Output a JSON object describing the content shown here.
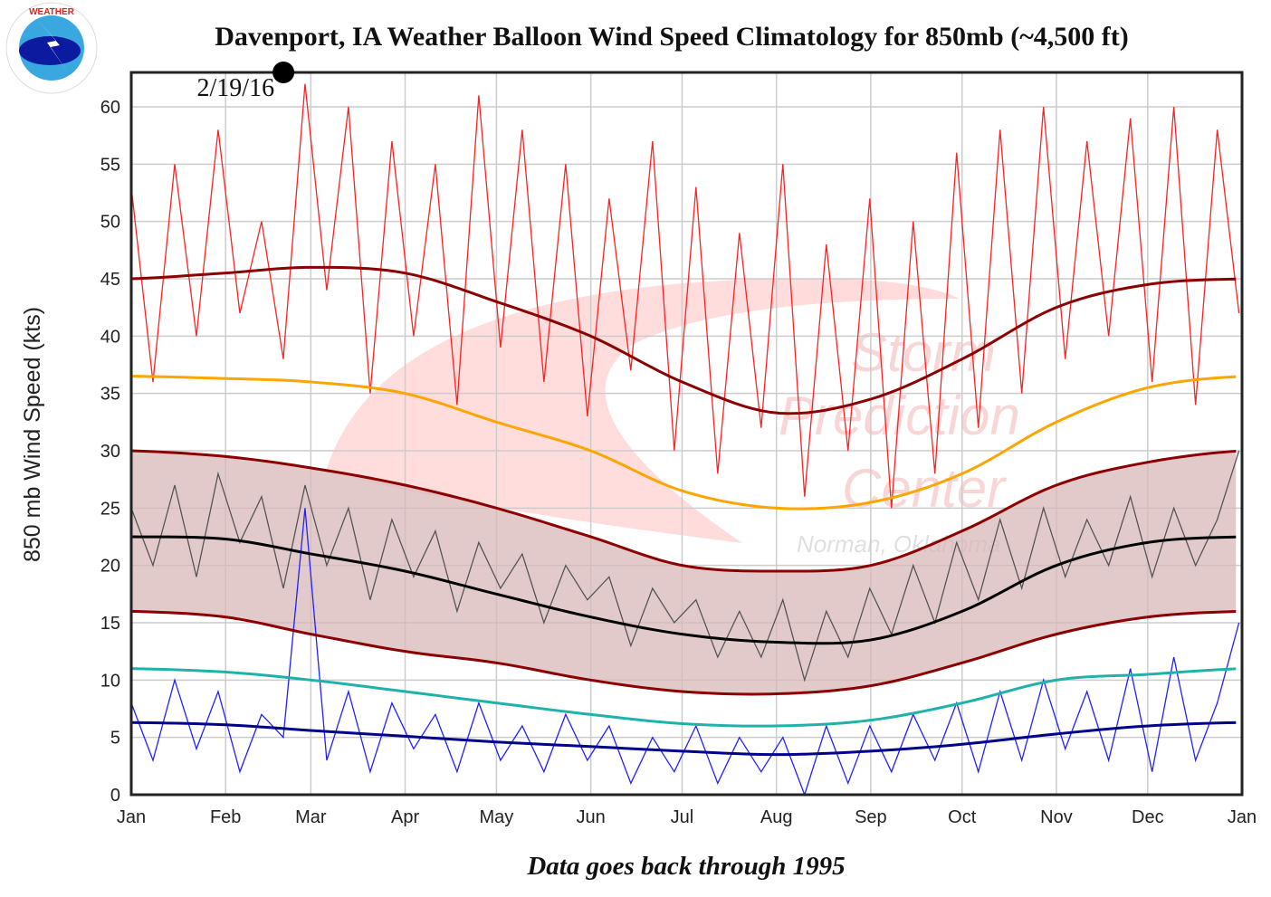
{
  "chart_data": {
    "type": "line",
    "title": "Davenport, IA Weather Balloon Wind Speed Climatology for 850mb (~4,500 ft)",
    "ylabel": "850 mb Wind Speed (kts)",
    "xlabel": "",
    "footnote": "Data goes back through 1995",
    "ylim": [
      0,
      63
    ],
    "yticks": [
      0,
      5,
      10,
      15,
      20,
      25,
      30,
      35,
      40,
      45,
      50,
      55,
      60
    ],
    "xticks": [
      "Jan",
      "Feb",
      "Mar",
      "Apr",
      "May",
      "Jun",
      "Jul",
      "Aug",
      "Sep",
      "Oct",
      "Nov",
      "Dec",
      "Jan"
    ],
    "grid": true,
    "annotation": {
      "label": "2/19/16",
      "day_of_year": 50,
      "value": 63
    },
    "watermark": [
      "Storm Prediction Center",
      "Norman, Oklahoma"
    ],
    "logo": "NATIONAL WEATHER SERVICE",
    "smooth_x": "month starts Jan 1 through Jan 1",
    "smooth_series": [
      {
        "key": "record-max-mean",
        "color": "#8b0000",
        "values": [
          45,
          45.5,
          46,
          45.5,
          43,
          40,
          36,
          33.3,
          34.5,
          38,
          42.5,
          44.5,
          45
        ]
      },
      {
        "key": "upper-percentile",
        "color": "#ffa500",
        "values": [
          36.5,
          36.3,
          36,
          35,
          32.5,
          30,
          26.5,
          25,
          25.5,
          28,
          32.5,
          35.5,
          36.5
        ]
      },
      {
        "key": "band-upper",
        "color": "#8b0000",
        "values": [
          30,
          29.5,
          28.5,
          27,
          25,
          22.5,
          20,
          19.5,
          20,
          23,
          27,
          29,
          30
        ]
      },
      {
        "key": "mean",
        "color": "#000000",
        "values": [
          22.5,
          22.3,
          21,
          19.5,
          17.5,
          15.5,
          14,
          13.3,
          13.5,
          16,
          20,
          22,
          22.5
        ]
      },
      {
        "key": "band-lower",
        "color": "#8b0000",
        "values": [
          16,
          15.5,
          14,
          12.5,
          11.5,
          10,
          9,
          8.8,
          9.5,
          11.5,
          14,
          15.5,
          16
        ]
      },
      {
        "key": "lower-percentile",
        "color": "#20b2aa",
        "values": [
          11,
          10.7,
          10,
          9,
          8,
          7,
          6.2,
          6,
          6.5,
          8,
          10,
          10.5,
          11
        ]
      },
      {
        "key": "record-min-mean",
        "color": "#00008b",
        "values": [
          6.3,
          6.1,
          5.6,
          5.1,
          4.6,
          4.2,
          3.8,
          3.5,
          3.8,
          4.4,
          5.3,
          6,
          6.3
        ]
      }
    ],
    "band_fill": "#d9b8b8",
    "daily_x": "weekly samples Jan 1 through Dec 31",
    "daily_series": [
      {
        "key": "daily-max",
        "color": "#ff2020",
        "values": [
          53,
          36,
          55,
          40,
          58,
          42,
          50,
          38,
          62,
          44,
          60,
          35,
          57,
          40,
          55,
          34,
          61,
          39,
          58,
          36,
          55,
          33,
          52,
          37,
          57,
          30,
          53,
          28,
          49,
          32,
          55,
          26,
          48,
          30,
          52,
          25,
          50,
          28,
          56,
          32,
          58,
          35,
          60,
          38,
          57,
          40,
          59,
          36,
          60,
          34,
          58,
          42
        ]
      },
      {
        "key": "daily-mean",
        "color": "#555555",
        "values": [
          25,
          20,
          27,
          19,
          28,
          22,
          26,
          18,
          27,
          20,
          25,
          17,
          24,
          19,
          23,
          16,
          22,
          18,
          21,
          15,
          20,
          17,
          19,
          13,
          18,
          15,
          17,
          12,
          16,
          12,
          17,
          10,
          16,
          12,
          18,
          14,
          20,
          15,
          22,
          17,
          24,
          18,
          25,
          19,
          24,
          20,
          26,
          19,
          25,
          20,
          24,
          30
        ]
      },
      {
        "key": "daily-min",
        "color": "#2020ff",
        "values": [
          8,
          3,
          10,
          4,
          9,
          2,
          7,
          5,
          25,
          3,
          9,
          2,
          8,
          4,
          7,
          2,
          8,
          3,
          6,
          2,
          7,
          3,
          6,
          1,
          5,
          2,
          6,
          1,
          5,
          2,
          5,
          0,
          6,
          1,
          6,
          2,
          7,
          3,
          8,
          2,
          9,
          3,
          10,
          4,
          9,
          3,
          11,
          2,
          12,
          3,
          8,
          15
        ]
      }
    ]
  }
}
